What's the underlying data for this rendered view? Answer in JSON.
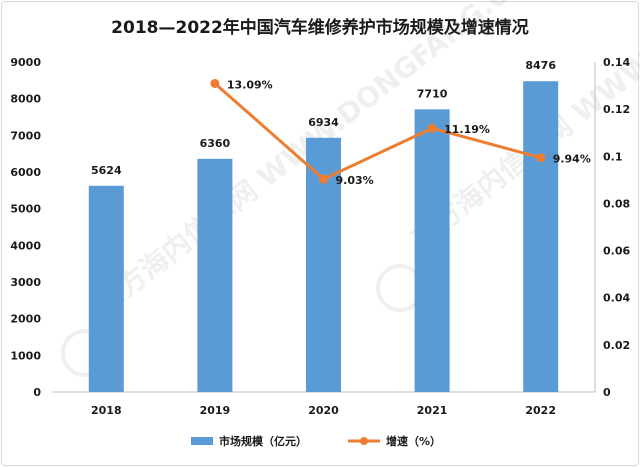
{
  "chart_data": {
    "type": "bar",
    "title": "2018—2022年中国汽车维修养护市场规模及增速情况",
    "categories": [
      "2018",
      "2019",
      "2020",
      "2021",
      "2022"
    ],
    "series": [
      {
        "name": "市场规模（亿元）",
        "kind": "bar",
        "axis": "left",
        "values": [
          5624,
          6360,
          6934,
          7710,
          8476
        ],
        "labels": [
          "5624",
          "6360",
          "6934",
          "7710",
          "8476"
        ]
      },
      {
        "name": "增速（%）",
        "kind": "line",
        "axis": "right",
        "values": [
          null,
          0.1309,
          0.0903,
          0.1119,
          0.0994
        ],
        "labels": [
          "",
          "13.09%",
          "9.03%",
          "11.19%",
          "9.94%"
        ]
      }
    ],
    "ylim": [
      0,
      9000
    ],
    "yticks": [
      "0",
      "1000",
      "2000",
      "3000",
      "4000",
      "5000",
      "6000",
      "7000",
      "8000",
      "9000"
    ],
    "y2lim": [
      0,
      0.14
    ],
    "y2ticks": [
      "0",
      "0.02",
      "0.04",
      "0.06",
      "0.08",
      "0.1",
      "0.12",
      "0.14"
    ],
    "grid": false,
    "legend_position": "bottom-center",
    "colors": {
      "bar": "#5b9bd5",
      "line": "#ed7d31",
      "axis": "#bfbfbf"
    },
    "watermark": "东方海内信息网 WWW.DONGFANG.COM"
  }
}
